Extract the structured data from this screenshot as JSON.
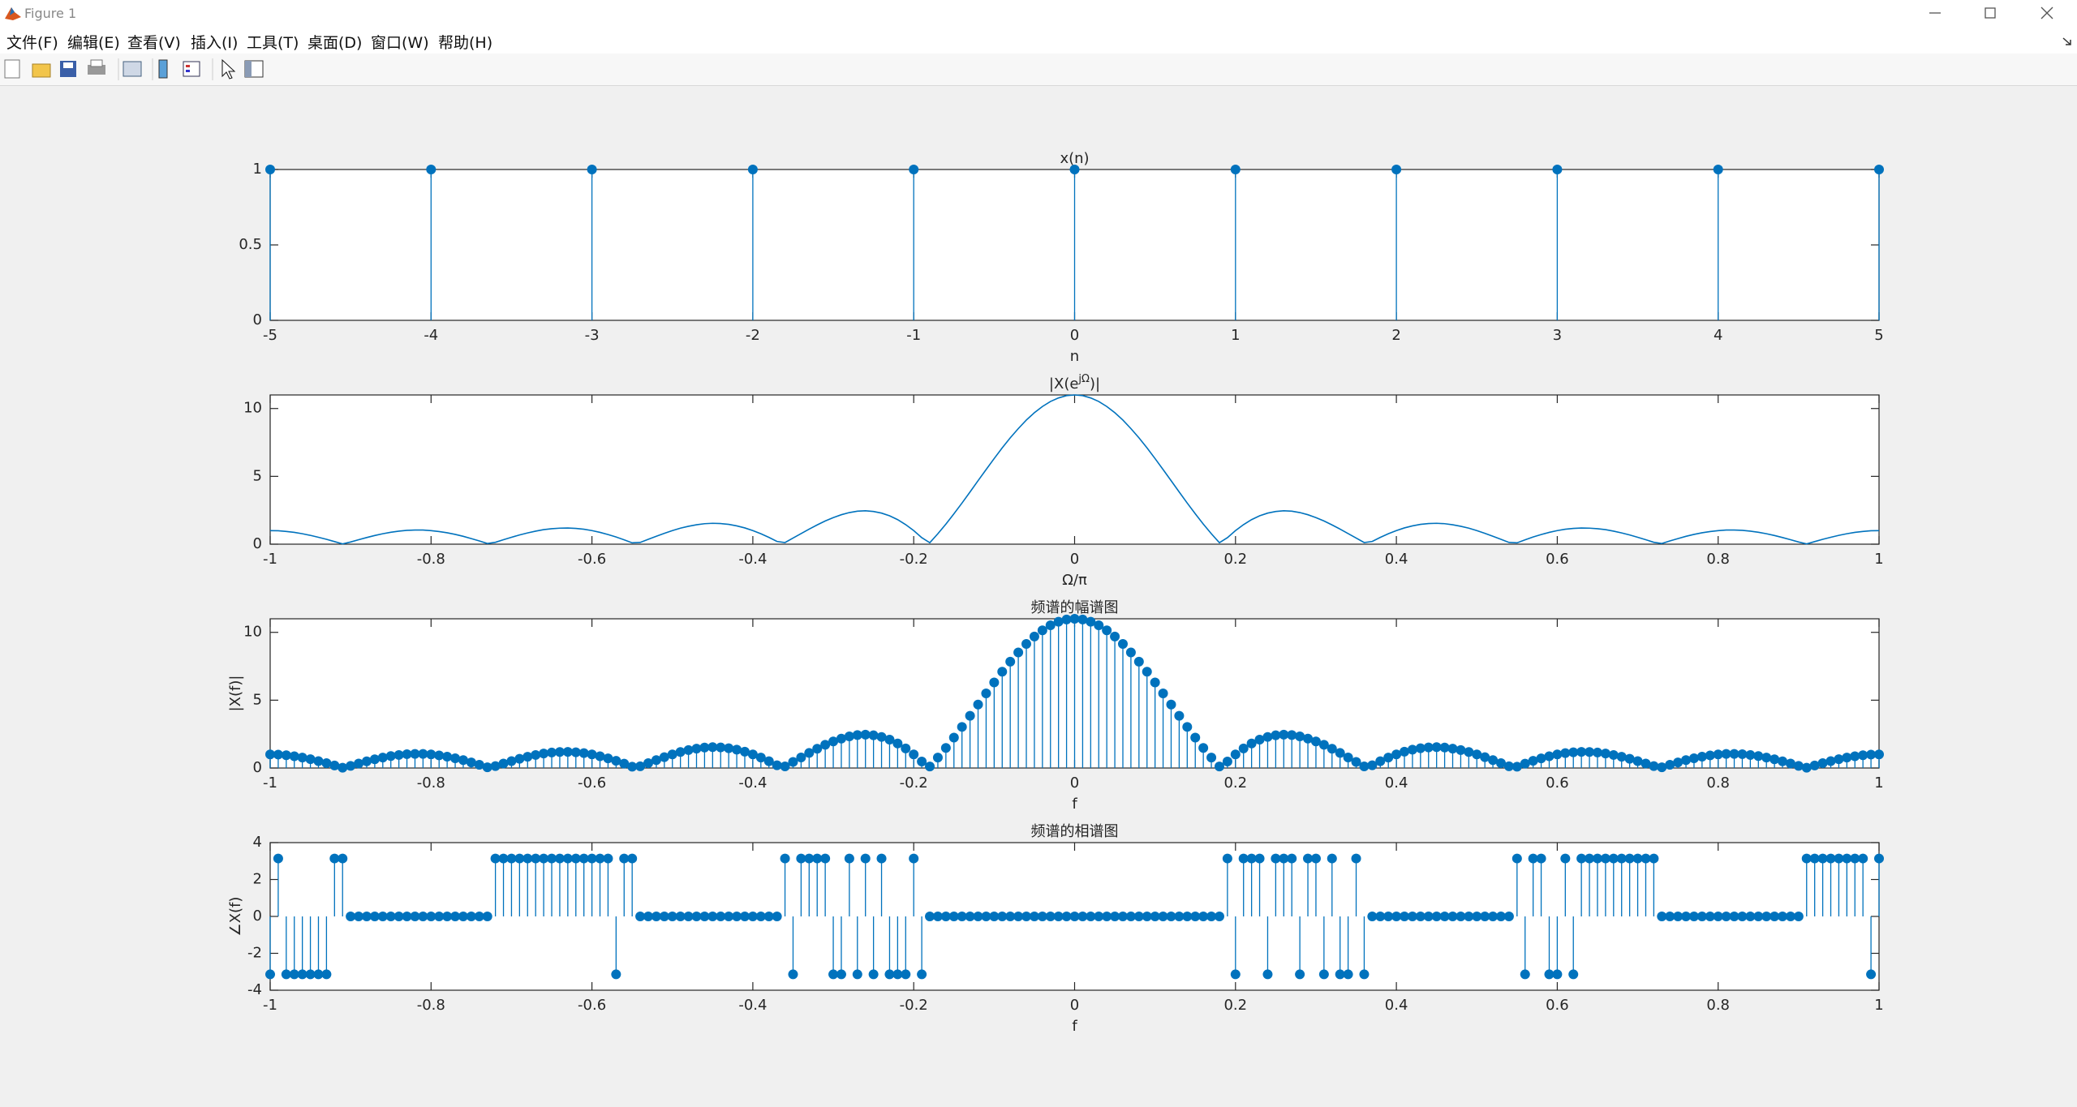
{
  "window": {
    "title": "Figure 1",
    "menu": [
      "文件(F)",
      "编辑(E)",
      "查看(V)",
      "插入(I)",
      "工具(T)",
      "桌面(D)",
      "窗口(W)",
      "帮助(H)"
    ]
  },
  "chart_data": [
    {
      "type": "stem",
      "title": "x(n)",
      "xlabel": "n",
      "color": "#0072bd",
      "x": [
        -5,
        -4,
        -3,
        -2,
        -1,
        0,
        1,
        2,
        3,
        4,
        5
      ],
      "values": [
        1,
        1,
        1,
        1,
        1,
        1,
        1,
        1,
        1,
        1,
        1
      ],
      "xlim": [
        -5,
        5
      ],
      "xticks": [
        -5,
        -4,
        -3,
        -2,
        -1,
        0,
        1,
        2,
        3,
        4,
        5
      ],
      "ylim": [
        0,
        1
      ],
      "yticks": [
        0,
        0.5,
        1
      ]
    },
    {
      "type": "line",
      "title": {
        "base": "|X(e",
        "superscript": "jΩ",
        "end": ")|"
      },
      "xlabel": "Ω/π",
      "color": "#0072bd",
      "x": [
        -1,
        -0.99,
        -0.98,
        -0.97,
        -0.96,
        -0.95,
        -0.94,
        -0.93,
        -0.92,
        -0.91,
        -0.9,
        -0.89,
        -0.88,
        -0.87,
        -0.86,
        -0.85,
        -0.84,
        -0.83,
        -0.82,
        -0.81,
        -0.8,
        -0.79,
        -0.78,
        -0.77,
        -0.76,
        -0.75,
        -0.74,
        -0.73,
        -0.72,
        -0.71,
        -0.7,
        -0.69,
        -0.68,
        -0.67,
        -0.66,
        -0.65,
        -0.64,
        -0.63,
        -0.62,
        -0.61,
        -0.6,
        -0.59,
        -0.58,
        -0.57,
        -0.56,
        -0.55,
        -0.54,
        -0.53,
        -0.52,
        -0.51,
        -0.5,
        -0.49,
        -0.48,
        -0.47,
        -0.46,
        -0.45,
        -0.44,
        -0.43,
        -0.42,
        -0.41,
        -0.4,
        -0.39,
        -0.38,
        -0.37,
        -0.36,
        -0.35,
        -0.34,
        -0.33,
        -0.32,
        -0.31,
        -0.3,
        -0.29,
        -0.28,
        -0.27,
        -0.26,
        -0.25,
        -0.24,
        -0.23,
        -0.22,
        -0.21,
        -0.2,
        -0.19,
        -0.18,
        -0.17,
        -0.16,
        -0.15,
        -0.14,
        -0.13,
        -0.12,
        -0.11,
        -0.1,
        -0.09,
        -0.08,
        -0.07,
        -0.06,
        -0.05,
        -0.04,
        -0.03,
        -0.02,
        -0.01,
        0,
        0.01,
        0.02,
        0.03,
        0.04,
        0.05,
        0.06,
        0.07,
        0.08,
        0.09,
        0.1,
        0.11,
        0.12,
        0.13,
        0.14,
        0.15,
        0.16,
        0.17,
        0.18,
        0.19,
        0.2,
        0.21,
        0.22,
        0.23,
        0.24,
        0.25,
        0.26,
        0.27,
        0.28,
        0.29,
        0.3,
        0.31,
        0.32,
        0.33,
        0.34,
        0.35,
        0.36,
        0.37,
        0.38,
        0.39,
        0.4,
        0.41,
        0.42,
        0.43,
        0.44,
        0.45,
        0.46,
        0.47,
        0.48,
        0.49,
        0.5,
        0.51,
        0.52,
        0.53,
        0.54,
        0.55,
        0.56,
        0.57,
        0.58,
        0.59,
        0.6,
        0.61,
        0.62,
        0.63,
        0.64,
        0.65,
        0.66,
        0.67,
        0.68,
        0.69,
        0.7,
        0.71,
        0.72,
        0.73,
        0.74,
        0.75,
        0.76,
        0.77,
        0.78,
        0.79,
        0.8,
        0.81,
        0.82,
        0.83,
        0.84,
        0.85,
        0.86,
        0.87,
        0.88,
        0.89,
        0.9,
        0.91,
        0.92,
        0.93,
        0.94,
        0.95,
        0.96,
        0.97,
        0.98,
        0.99,
        1
      ],
      "values": [
        1,
        0.99,
        0.94,
        0.87,
        0.77,
        0.65,
        0.51,
        0.36,
        0.19,
        0.02,
        0.16,
        0.33,
        0.49,
        0.64,
        0.77,
        0.88,
        0.96,
        1.02,
        1.04,
        1.04,
        1,
        0.93,
        0.84,
        0.72,
        0.58,
        0.41,
        0.24,
        0.05,
        0.14,
        0.33,
        0.51,
        0.68,
        0.83,
        0.96,
        1.07,
        1.14,
        1.18,
        1.19,
        1.16,
        1.1,
        1,
        0.87,
        0.71,
        0.53,
        0.32,
        0.1,
        0.13,
        0.36,
        0.58,
        0.8,
        1,
        1.18,
        1.32,
        1.43,
        1.51,
        1.54,
        1.52,
        1.46,
        1.35,
        1.2,
        1,
        0.77,
        0.5,
        0.2,
        0.12,
        0.45,
        0.78,
        1.11,
        1.42,
        1.71,
        1.96,
        2.17,
        2.33,
        2.43,
        2.46,
        2.41,
        2.29,
        2.09,
        1.81,
        1.44,
        1,
        0.48,
        0.11,
        0.77,
        1.48,
        2.24,
        3.03,
        3.85,
        4.68,
        5.5,
        6.31,
        7.1,
        7.84,
        8.52,
        9.15,
        9.69,
        10.15,
        10.52,
        10.78,
        10.95,
        11,
        10.95,
        10.78,
        10.52,
        10.15,
        9.69,
        9.15,
        8.52,
        7.84,
        7.1,
        6.31,
        5.5,
        4.68,
        3.85,
        3.03,
        2.24,
        1.48,
        0.77,
        0.11,
        0.48,
        1,
        1.44,
        1.81,
        2.09,
        2.29,
        2.41,
        2.46,
        2.43,
        2.33,
        2.17,
        1.96,
        1.71,
        1.42,
        1.11,
        0.78,
        0.45,
        0.12,
        0.2,
        0.5,
        0.77,
        1,
        1.2,
        1.35,
        1.46,
        1.52,
        1.54,
        1.51,
        1.43,
        1.32,
        1.18,
        1,
        0.8,
        0.58,
        0.36,
        0.13,
        0.1,
        0.32,
        0.53,
        0.71,
        0.87,
        1,
        1.1,
        1.16,
        1.19,
        1.18,
        1.14,
        1.07,
        0.96,
        0.83,
        0.68,
        0.51,
        0.33,
        0.14,
        0.05,
        0.24,
        0.41,
        0.58,
        0.72,
        0.84,
        0.93,
        1,
        1.04,
        1.04,
        1.02,
        0.96,
        0.88,
        0.77,
        0.64,
        0.49,
        0.33,
        0.16,
        0.02,
        0.19,
        0.36,
        0.51,
        0.65,
        0.77,
        0.87,
        0.94,
        0.99,
        1
      ],
      "xlim": [
        -1,
        1
      ],
      "xticks": [
        -1,
        -0.8,
        -0.6,
        -0.4,
        -0.2,
        0,
        0.2,
        0.4,
        0.6,
        0.8,
        1
      ],
      "ylim": [
        0,
        11
      ],
      "yticks": [
        0,
        5,
        10
      ]
    },
    {
      "type": "stem",
      "title": "频谱的幅谱图",
      "xlabel": "f",
      "ylabel": "|X(f)|",
      "color": "#0072bd",
      "x": [
        -1,
        -0.99,
        -0.98,
        -0.97,
        -0.96,
        -0.95,
        -0.94,
        -0.93,
        -0.92,
        -0.91,
        -0.9,
        -0.89,
        -0.88,
        -0.87,
        -0.86,
        -0.85,
        -0.84,
        -0.83,
        -0.82,
        -0.81,
        -0.8,
        -0.79,
        -0.78,
        -0.77,
        -0.76,
        -0.75,
        -0.74,
        -0.73,
        -0.72,
        -0.71,
        -0.7,
        -0.69,
        -0.68,
        -0.67,
        -0.66,
        -0.65,
        -0.64,
        -0.63,
        -0.62,
        -0.61,
        -0.6,
        -0.59,
        -0.58,
        -0.57,
        -0.56,
        -0.55,
        -0.54,
        -0.53,
        -0.52,
        -0.51,
        -0.5,
        -0.49,
        -0.48,
        -0.47,
        -0.46,
        -0.45,
        -0.44,
        -0.43,
        -0.42,
        -0.41,
        -0.4,
        -0.39,
        -0.38,
        -0.37,
        -0.36,
        -0.35,
        -0.34,
        -0.33,
        -0.32,
        -0.31,
        -0.3,
        -0.29,
        -0.28,
        -0.27,
        -0.26,
        -0.25,
        -0.24,
        -0.23,
        -0.22,
        -0.21,
        -0.2,
        -0.19,
        -0.18,
        -0.17,
        -0.16,
        -0.15,
        -0.14,
        -0.13,
        -0.12,
        -0.11,
        -0.1,
        -0.09,
        -0.08,
        -0.07,
        -0.06,
        -0.05,
        -0.04,
        -0.03,
        -0.02,
        -0.01,
        0,
        0.01,
        0.02,
        0.03,
        0.04,
        0.05,
        0.06,
        0.07,
        0.08,
        0.09,
        0.1,
        0.11,
        0.12,
        0.13,
        0.14,
        0.15,
        0.16,
        0.17,
        0.18,
        0.19,
        0.2,
        0.21,
        0.22,
        0.23,
        0.24,
        0.25,
        0.26,
        0.27,
        0.28,
        0.29,
        0.3,
        0.31,
        0.32,
        0.33,
        0.34,
        0.35,
        0.36,
        0.37,
        0.38,
        0.39,
        0.4,
        0.41,
        0.42,
        0.43,
        0.44,
        0.45,
        0.46,
        0.47,
        0.48,
        0.49,
        0.5,
        0.51,
        0.52,
        0.53,
        0.54,
        0.55,
        0.56,
        0.57,
        0.58,
        0.59,
        0.6,
        0.61,
        0.62,
        0.63,
        0.64,
        0.65,
        0.66,
        0.67,
        0.68,
        0.69,
        0.7,
        0.71,
        0.72,
        0.73,
        0.74,
        0.75,
        0.76,
        0.77,
        0.78,
        0.79,
        0.8,
        0.81,
        0.82,
        0.83,
        0.84,
        0.85,
        0.86,
        0.87,
        0.88,
        0.89,
        0.9,
        0.91,
        0.92,
        0.93,
        0.94,
        0.95,
        0.96,
        0.97,
        0.98,
        0.99,
        1
      ],
      "values": [
        1,
        0.99,
        0.94,
        0.87,
        0.77,
        0.65,
        0.51,
        0.36,
        0.19,
        0.02,
        0.16,
        0.33,
        0.49,
        0.64,
        0.77,
        0.88,
        0.96,
        1.02,
        1.04,
        1.04,
        1,
        0.93,
        0.84,
        0.72,
        0.58,
        0.41,
        0.24,
        0.05,
        0.14,
        0.33,
        0.51,
        0.68,
        0.83,
        0.96,
        1.07,
        1.14,
        1.18,
        1.19,
        1.16,
        1.1,
        1,
        0.87,
        0.71,
        0.53,
        0.32,
        0.1,
        0.13,
        0.36,
        0.58,
        0.8,
        1,
        1.18,
        1.32,
        1.43,
        1.51,
        1.54,
        1.52,
        1.46,
        1.35,
        1.2,
        1,
        0.77,
        0.5,
        0.2,
        0.12,
        0.45,
        0.78,
        1.11,
        1.42,
        1.71,
        1.96,
        2.17,
        2.33,
        2.43,
        2.46,
        2.41,
        2.29,
        2.09,
        1.81,
        1.44,
        1,
        0.48,
        0.11,
        0.77,
        1.48,
        2.24,
        3.03,
        3.85,
        4.68,
        5.5,
        6.31,
        7.1,
        7.84,
        8.52,
        9.15,
        9.69,
        10.15,
        10.52,
        10.78,
        10.95,
        11,
        10.95,
        10.78,
        10.52,
        10.15,
        9.69,
        9.15,
        8.52,
        7.84,
        7.1,
        6.31,
        5.5,
        4.68,
        3.85,
        3.03,
        2.24,
        1.48,
        0.77,
        0.11,
        0.48,
        1,
        1.44,
        1.81,
        2.09,
        2.29,
        2.41,
        2.46,
        2.43,
        2.33,
        2.17,
        1.96,
        1.71,
        1.42,
        1.11,
        0.78,
        0.45,
        0.12,
        0.2,
        0.5,
        0.77,
        1,
        1.2,
        1.35,
        1.46,
        1.52,
        1.54,
        1.51,
        1.43,
        1.32,
        1.18,
        1,
        0.8,
        0.58,
        0.36,
        0.13,
        0.1,
        0.32,
        0.53,
        0.71,
        0.87,
        1,
        1.1,
        1.16,
        1.19,
        1.18,
        1.14,
        1.07,
        0.96,
        0.83,
        0.68,
        0.51,
        0.33,
        0.14,
        0.05,
        0.24,
        0.41,
        0.58,
        0.72,
        0.84,
        0.93,
        1,
        1.04,
        1.04,
        1.02,
        0.96,
        0.88,
        0.77,
        0.64,
        0.49,
        0.33,
        0.16,
        0.02,
        0.19,
        0.36,
        0.51,
        0.65,
        0.77,
        0.87,
        0.94,
        0.99,
        1
      ],
      "xlim": [
        -1,
        1
      ],
      "xticks": [
        -1,
        -0.8,
        -0.6,
        -0.4,
        -0.2,
        0,
        0.2,
        0.4,
        0.6,
        0.8,
        1
      ],
      "ylim": [
        0,
        11
      ],
      "yticks": [
        0,
        5,
        10
      ]
    },
    {
      "type": "stem",
      "title": "频谱的相谱图",
      "xlabel": "f",
      "ylabel": "∠X(f)",
      "color": "#0072bd",
      "x": [
        -1,
        -0.99,
        -0.98,
        -0.97,
        -0.96,
        -0.95,
        -0.94,
        -0.93,
        -0.92,
        -0.91,
        -0.9,
        -0.89,
        -0.88,
        -0.87,
        -0.86,
        -0.85,
        -0.84,
        -0.83,
        -0.82,
        -0.81,
        -0.8,
        -0.79,
        -0.78,
        -0.77,
        -0.76,
        -0.75,
        -0.74,
        -0.73,
        -0.72,
        -0.71,
        -0.7,
        -0.69,
        -0.68,
        -0.67,
        -0.66,
        -0.65,
        -0.64,
        -0.63,
        -0.62,
        -0.61,
        -0.6,
        -0.59,
        -0.58,
        -0.57,
        -0.56,
        -0.55,
        -0.54,
        -0.53,
        -0.52,
        -0.51,
        -0.5,
        -0.49,
        -0.48,
        -0.47,
        -0.46,
        -0.45,
        -0.44,
        -0.43,
        -0.42,
        -0.41,
        -0.4,
        -0.39,
        -0.38,
        -0.37,
        -0.36,
        -0.35,
        -0.34,
        -0.33,
        -0.32,
        -0.31,
        -0.3,
        -0.29,
        -0.28,
        -0.27,
        -0.26,
        -0.25,
        -0.24,
        -0.23,
        -0.22,
        -0.21,
        -0.2,
        -0.19,
        -0.18,
        -0.17,
        -0.16,
        -0.15,
        -0.14,
        -0.13,
        -0.12,
        -0.11,
        -0.1,
        -0.09,
        -0.08,
        -0.07,
        -0.06,
        -0.05,
        -0.04,
        -0.03,
        -0.02,
        -0.01,
        0,
        0.01,
        0.02,
        0.03,
        0.04,
        0.05,
        0.06,
        0.07,
        0.08,
        0.09,
        0.1,
        0.11,
        0.12,
        0.13,
        0.14,
        0.15,
        0.16,
        0.17,
        0.18,
        0.19,
        0.2,
        0.21,
        0.22,
        0.23,
        0.24,
        0.25,
        0.26,
        0.27,
        0.28,
        0.29,
        0.3,
        0.31,
        0.32,
        0.33,
        0.34,
        0.35,
        0.36,
        0.37,
        0.38,
        0.39,
        0.4,
        0.41,
        0.42,
        0.43,
        0.44,
        0.45,
        0.46,
        0.47,
        0.48,
        0.49,
        0.5,
        0.51,
        0.52,
        0.53,
        0.54,
        0.55,
        0.56,
        0.57,
        0.58,
        0.59,
        0.6,
        0.61,
        0.62,
        0.63,
        0.64,
        0.65,
        0.66,
        0.67,
        0.68,
        0.69,
        0.7,
        0.71,
        0.72,
        0.73,
        0.74,
        0.75,
        0.76,
        0.77,
        0.78,
        0.79,
        0.8,
        0.81,
        0.82,
        0.83,
        0.84,
        0.85,
        0.86,
        0.87,
        0.88,
        0.89,
        0.9,
        0.91,
        0.92,
        0.93,
        0.94,
        0.95,
        0.96,
        0.97,
        0.98,
        0.99,
        1
      ],
      "values": [
        -3.14,
        3.14,
        -3.14,
        -3.14,
        -3.14,
        -3.14,
        -3.14,
        -3.14,
        3.14,
        3.14,
        0,
        0,
        0,
        0,
        0,
        0,
        0,
        0,
        0,
        0,
        0,
        0,
        0,
        0,
        0,
        0,
        0,
        0,
        3.14,
        3.14,
        3.14,
        3.14,
        3.14,
        3.14,
        3.14,
        3.14,
        3.14,
        3.14,
        3.14,
        3.14,
        3.14,
        3.14,
        3.14,
        -3.14,
        3.14,
        3.14,
        0,
        0,
        0,
        0,
        0,
        0,
        0,
        0,
        0,
        0,
        0,
        0,
        0,
        0,
        0,
        0,
        0,
        0,
        3.14,
        -3.14,
        3.14,
        3.14,
        3.14,
        3.14,
        -3.14,
        -3.14,
        3.14,
        -3.14,
        3.14,
        -3.14,
        3.14,
        -3.14,
        -3.14,
        -3.14,
        3.14,
        -3.14,
        0,
        0,
        0,
        0,
        0,
        0,
        0,
        0,
        0,
        0,
        0,
        0,
        0,
        0,
        0,
        0,
        0,
        0,
        0,
        0,
        0,
        0,
        0,
        0,
        0,
        0,
        0,
        0,
        0,
        0,
        0,
        0,
        0,
        0,
        0,
        0,
        0,
        3.14,
        -3.14,
        3.14,
        3.14,
        3.14,
        -3.14,
        3.14,
        3.14,
        3.14,
        -3.14,
        3.14,
        3.14,
        -3.14,
        3.14,
        -3.14,
        -3.14,
        3.14,
        -3.14,
        0,
        0,
        0,
        0,
        0,
        0,
        0,
        0,
        0,
        0,
        0,
        0,
        0,
        0,
        0,
        0,
        0,
        0,
        3.14,
        -3.14,
        3.14,
        3.14,
        -3.14,
        -3.14,
        3.14,
        -3.14,
        3.14,
        3.14,
        3.14,
        3.14,
        3.14,
        3.14,
        3.14,
        3.14,
        3.14,
        3.14,
        0,
        0,
        0,
        0,
        0,
        0,
        0,
        0,
        0,
        0,
        0,
        0,
        0,
        0,
        0,
        0,
        0,
        0,
        3.14,
        3.14,
        3.14,
        3.14,
        3.14,
        3.14,
        3.14,
        3.14,
        -3.14,
        3.14
      ],
      "xlim": [
        -1,
        1
      ],
      "xticks": [
        -1,
        -0.8,
        -0.6,
        -0.4,
        -0.2,
        0,
        0.2,
        0.4,
        0.6,
        0.8,
        1
      ],
      "ylim": [
        -4,
        4
      ],
      "yticks": [
        -4,
        -2,
        0,
        2,
        4
      ]
    }
  ]
}
